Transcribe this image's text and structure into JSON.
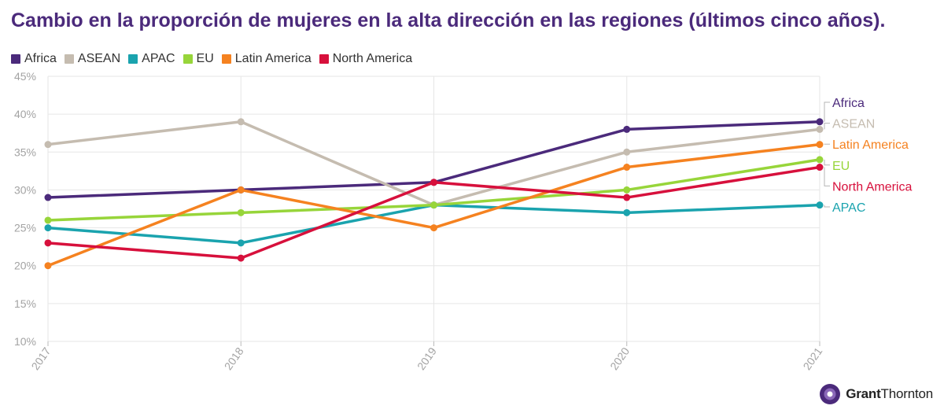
{
  "title": "Cambio en la proporción de mujeres en la alta dirección en las regiones (últimos cinco años).",
  "brand": {
    "part1": "Grant",
    "part2": "Thornton"
  },
  "chart_data": {
    "type": "line",
    "title": "Cambio en la proporción de mujeres en la alta dirección en las regiones (últimos cinco años).",
    "xlabel": "",
    "ylabel": "",
    "categories": [
      "2017",
      "2018",
      "2019",
      "2020",
      "2021"
    ],
    "ylim": [
      10,
      45
    ],
    "yticks": [
      10,
      15,
      20,
      25,
      30,
      35,
      40,
      45
    ],
    "ytick_labels": [
      "10%",
      "15%",
      "20%",
      "25%",
      "30%",
      "35%",
      "40%",
      "45%"
    ],
    "grid": true,
    "legend_position": "top-left",
    "series": [
      {
        "name": "Africa",
        "color": "#4b2a7b",
        "values": [
          29,
          30,
          31,
          38,
          39
        ]
      },
      {
        "name": "ASEAN",
        "color": "#c5bcb0",
        "values": [
          36,
          39,
          28,
          35,
          38
        ]
      },
      {
        "name": "APAC",
        "color": "#1aa3ae",
        "values": [
          25,
          23,
          28,
          27,
          28
        ]
      },
      {
        "name": "EU",
        "color": "#97d53a",
        "values": [
          26,
          27,
          28,
          30,
          34
        ]
      },
      {
        "name": "Latin America",
        "color": "#f58220",
        "values": [
          20,
          30,
          25,
          33,
          36
        ]
      },
      {
        "name": "North America",
        "color": "#d7103c",
        "values": [
          23,
          21,
          31,
          29,
          33
        ]
      }
    ]
  }
}
